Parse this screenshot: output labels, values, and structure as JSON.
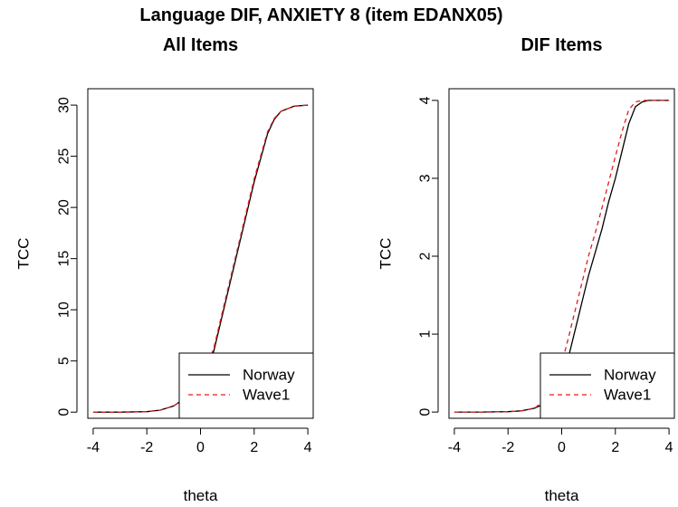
{
  "figure": {
    "title": "Language DIF, ANXIETY 8 (item EDANX05)"
  },
  "chart_data": [
    {
      "type": "line",
      "title": "All Items",
      "xlabel": "theta",
      "ylabel": "TCC",
      "xlim": [
        -4.2,
        4.2
      ],
      "ylim": [
        -0.6,
        31.6
      ],
      "xticks": [
        -4,
        -2,
        0,
        2,
        4
      ],
      "yticks": [
        0,
        5,
        10,
        15,
        20,
        25,
        30
      ],
      "legend": {
        "position": "bottom-right"
      },
      "series": [
        {
          "name": "Norway",
          "color": "#000000",
          "dash": "solid",
          "x": [
            -4,
            -3,
            -2,
            -1.5,
            -1,
            -0.5,
            0,
            0.25,
            0.5,
            1,
            1.5,
            2,
            2.5,
            2.75,
            3,
            3.5,
            4
          ],
          "y": [
            0,
            0,
            0.05,
            0.2,
            0.6,
            1.5,
            3.0,
            4.2,
            6.0,
            11.5,
            17.0,
            22.5,
            27.2,
            28.6,
            29.4,
            29.9,
            30.0
          ]
        },
        {
          "name": "Wave1",
          "color": "#e41a1c",
          "dash": "dashed",
          "x": [
            -4,
            -3,
            -2,
            -1.5,
            -1,
            -0.5,
            0,
            0.25,
            0.5,
            1,
            1.5,
            2,
            2.5,
            2.75,
            3,
            3.5,
            4
          ],
          "y": [
            0,
            0,
            0.05,
            0.2,
            0.6,
            1.5,
            3.1,
            4.4,
            6.3,
            11.8,
            17.3,
            22.8,
            27.4,
            28.7,
            29.4,
            29.9,
            30.0
          ]
        }
      ]
    },
    {
      "type": "line",
      "title": "DIF Items",
      "xlabel": "theta",
      "ylabel": "TCC",
      "xlim": [
        -4.2,
        4.2
      ],
      "ylim": [
        -0.08,
        4.15
      ],
      "xticks": [
        -4,
        -2,
        0,
        2,
        4
      ],
      "yticks": [
        0,
        1,
        2,
        3,
        4
      ],
      "legend": {
        "position": "bottom-right"
      },
      "series": [
        {
          "name": "Norway",
          "color": "#000000",
          "dash": "solid",
          "x": [
            -4,
            -3,
            -2,
            -1.5,
            -1,
            -0.5,
            0,
            0.25,
            0.5,
            0.75,
            1,
            1.25,
            1.5,
            1.75,
            2,
            2.25,
            2.5,
            2.75,
            3,
            3.25,
            3.5,
            4
          ],
          "y": [
            0,
            0,
            0.005,
            0.015,
            0.05,
            0.13,
            0.4,
            0.7,
            1.05,
            1.4,
            1.75,
            2.05,
            2.35,
            2.7,
            3.0,
            3.35,
            3.7,
            3.92,
            3.98,
            4.0,
            4.0,
            4.0
          ]
        },
        {
          "name": "Wave1",
          "color": "#e41a1c",
          "dash": "dashed",
          "x": [
            -4,
            -3,
            -2,
            -1.5,
            -1,
            -0.5,
            0,
            0.25,
            0.5,
            0.75,
            1,
            1.25,
            1.5,
            1.75,
            2,
            2.25,
            2.5,
            2.75,
            3,
            3.25,
            3.5,
            4
          ],
          "y": [
            0,
            0,
            0.005,
            0.015,
            0.05,
            0.2,
            0.62,
            0.95,
            1.3,
            1.65,
            2.0,
            2.3,
            2.62,
            2.95,
            3.28,
            3.6,
            3.88,
            3.98,
            4.0,
            4.0,
            4.0,
            4.0
          ]
        }
      ]
    }
  ]
}
